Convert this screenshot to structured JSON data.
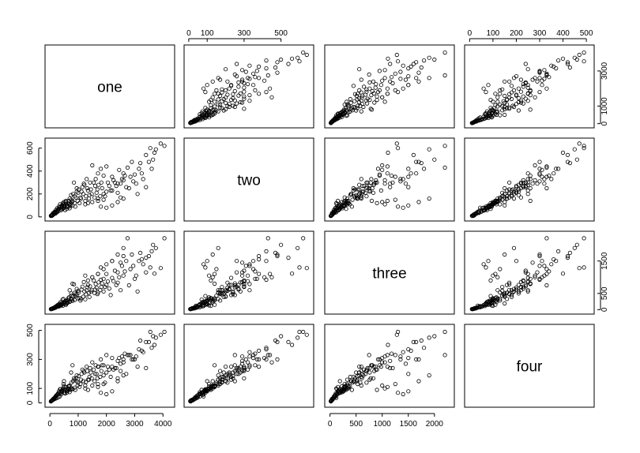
{
  "chart_data": {
    "type": "scatter",
    "variables": [
      {
        "name": "one",
        "ticks": [
          0,
          1000,
          2000,
          3000,
          4000
        ],
        "lim": [
          -60,
          4300
        ]
      },
      {
        "name": "two",
        "ticks": [
          0,
          100,
          300,
          500
        ],
        "tick_labels_all": [
          0,
          100,
          200,
          300,
          400,
          500,
          600
        ],
        "lim": [
          -8,
          660
        ]
      },
      {
        "name": "three",
        "ticks": [
          0,
          500,
          1000,
          1500,
          2000
        ],
        "lim": [
          -40,
          2320
        ]
      },
      {
        "name": "four",
        "ticks": [
          0,
          100,
          200,
          300,
          400,
          500
        ],
        "lim": [
          -8,
          520
        ]
      }
    ],
    "axis_ticks": {
      "top": {
        "two": [
          0,
          100,
          300,
          500
        ],
        "four": [
          0,
          100,
          200,
          300,
          400,
          500
        ]
      },
      "bottom": {
        "one": [
          0,
          1000,
          2000,
          3000,
          4000
        ],
        "three": [
          0,
          500,
          1000,
          1500,
          2000
        ]
      },
      "left": {
        "two": [
          0,
          200,
          400,
          600
        ],
        "four": [
          0,
          100,
          300,
          500
        ]
      },
      "right": {
        "one": [
          0,
          1000,
          3000
        ],
        "three": [
          0,
          500,
          1500
        ]
      }
    },
    "points": [
      [
        3920,
        640,
        1280,
        470
      ],
      [
        3700,
        560,
        1110,
        400
      ],
      [
        3550,
        600,
        1300,
        490
      ],
      [
        3400,
        540,
        1600,
        420
      ],
      [
        3200,
        470,
        1750,
        430
      ],
      [
        2900,
        480,
        1700,
        300
      ],
      [
        2750,
        430,
        2200,
        330
      ],
      [
        2600,
        380,
        1650,
        300
      ],
      [
        2500,
        290,
        1450,
        270
      ],
      [
        2300,
        300,
        1200,
        240
      ],
      [
        3400,
        260,
        1150,
        240
      ],
      [
        3000,
        370,
        950,
        300
      ],
      [
        2000,
        440,
        1100,
        330
      ],
      [
        1800,
        420,
        920,
        300
      ],
      [
        3600,
        420,
        1800,
        380
      ],
      [
        2200,
        350,
        1500,
        310
      ],
      [
        1700,
        380,
        1100,
        250
      ],
      [
        1500,
        450,
        1000,
        280
      ],
      [
        1300,
        330,
        600,
        250
      ],
      [
        2800,
        250,
        750,
        330
      ],
      [
        1950,
        180,
        700,
        140
      ],
      [
        2500,
        170,
        600,
        220
      ],
      [
        1600,
        270,
        620,
        200
      ],
      [
        2150,
        230,
        450,
        180
      ],
      [
        1200,
        290,
        850,
        220
      ],
      [
        850,
        300,
        780,
        170
      ],
      [
        950,
        250,
        450,
        150
      ],
      [
        1400,
        190,
        390,
        180
      ],
      [
        1700,
        160,
        530,
        130
      ],
      [
        3100,
        200,
        560,
        250
      ],
      [
        2700,
        260,
        1500,
        200
      ],
      [
        2400,
        210,
        830,
        170
      ],
      [
        1000,
        210,
        580,
        140
      ],
      [
        1100,
        160,
        330,
        160
      ],
      [
        750,
        190,
        500,
        210
      ],
      [
        800,
        140,
        800,
        260
      ],
      [
        650,
        120,
        350,
        100
      ],
      [
        600,
        90,
        260,
        80
      ],
      [
        500,
        100,
        190,
        150
      ],
      [
        450,
        70,
        310,
        90
      ],
      [
        400,
        60,
        140,
        60
      ],
      [
        350,
        80,
        110,
        45
      ],
      [
        300,
        50,
        90,
        40
      ],
      [
        250,
        40,
        120,
        35
      ],
      [
        200,
        30,
        60,
        30
      ],
      [
        150,
        25,
        45,
        25
      ],
      [
        100,
        15,
        30,
        20
      ],
      [
        80,
        12,
        25,
        18
      ],
      [
        60,
        10,
        20,
        15
      ],
      [
        40,
        8,
        15,
        12
      ],
      [
        900,
        90,
        420,
        90
      ],
      [
        1050,
        120,
        360,
        110
      ],
      [
        700,
        160,
        600,
        120
      ],
      [
        560,
        130,
        270,
        110
      ],
      [
        480,
        110,
        330,
        130
      ],
      [
        380,
        90,
        230,
        95
      ],
      [
        330,
        70,
        180,
        70
      ],
      [
        270,
        55,
        140,
        60
      ],
      [
        220,
        45,
        100,
        50
      ],
      [
        180,
        40,
        80,
        40
      ],
      [
        1250,
        140,
        320,
        120
      ],
      [
        1350,
        230,
        760,
        160
      ],
      [
        1150,
        260,
        710,
        230
      ],
      [
        950,
        220,
        640,
        190
      ],
      [
        880,
        180,
        520,
        160
      ],
      [
        760,
        150,
        430,
        140
      ],
      [
        680,
        110,
        380,
        115
      ],
      [
        620,
        100,
        290,
        95
      ],
      [
        520,
        95,
        250,
        85
      ],
      [
        430,
        85,
        210,
        80
      ],
      [
        2050,
        300,
        870,
        250
      ],
      [
        1850,
        250,
        810,
        260
      ],
      [
        1650,
        210,
        680,
        200
      ],
      [
        1450,
        240,
        560,
        210
      ],
      [
        1550,
        300,
        900,
        230
      ],
      [
        2600,
        320,
        1050,
        280
      ],
      [
        2350,
        270,
        760,
        240
      ],
      [
        2250,
        320,
        880,
        230
      ],
      [
        1900,
        360,
        950,
        260
      ],
      [
        2450,
        410,
        1000,
        310
      ],
      [
        3300,
        330,
        1400,
        350
      ],
      [
        3150,
        420,
        1500,
        370
      ],
      [
        3500,
        480,
        1650,
        420
      ],
      [
        3750,
        590,
        1900,
        450
      ],
      [
        2850,
        350,
        1250,
        330
      ],
      [
        570,
        140,
        150,
        110
      ],
      [
        510,
        80,
        200,
        70
      ],
      [
        460,
        120,
        120,
        100
      ],
      [
        420,
        100,
        160,
        85
      ],
      [
        390,
        60,
        170,
        75
      ],
      [
        360,
        110,
        130,
        95
      ],
      [
        320,
        90,
        150,
        80
      ],
      [
        290,
        65,
        110,
        65
      ],
      [
        260,
        75,
        100,
        55
      ],
      [
        230,
        50,
        90,
        50
      ],
      [
        210,
        60,
        75,
        45
      ],
      [
        190,
        35,
        85,
        40
      ],
      [
        170,
        45,
        65,
        35
      ],
      [
        140,
        30,
        55,
        30
      ],
      [
        120,
        35,
        40,
        28
      ],
      [
        110,
        20,
        50,
        22
      ],
      [
        90,
        25,
        35,
        20
      ],
      [
        70,
        18,
        30,
        17
      ],
      [
        55,
        14,
        22,
        14
      ],
      [
        35,
        10,
        18,
        10
      ],
      [
        1080,
        170,
        280,
        130
      ],
      [
        1180,
        200,
        400,
        150
      ],
      [
        1280,
        180,
        470,
        145
      ],
      [
        1380,
        160,
        520,
        160
      ],
      [
        1480,
        200,
        610,
        170
      ],
      [
        980,
        140,
        350,
        120
      ],
      [
        880,
        120,
        300,
        105
      ],
      [
        780,
        130,
        310,
        100
      ],
      [
        720,
        95,
        260,
        90
      ],
      [
        660,
        140,
        280,
        115
      ],
      [
        820,
        200,
        410,
        150
      ],
      [
        920,
        170,
        480,
        170
      ],
      [
        1020,
        240,
        530,
        185
      ],
      [
        1120,
        220,
        620,
        200
      ],
      [
        1220,
        280,
        560,
        210
      ],
      [
        1320,
        250,
        690,
        220
      ],
      [
        1420,
        300,
        720,
        240
      ],
      [
        1620,
        330,
        790,
        260
      ],
      [
        1720,
        280,
        840,
        250
      ],
      [
        1820,
        300,
        700,
        220
      ],
      [
        2100,
        270,
        650,
        230
      ],
      [
        2200,
        230,
        980,
        250
      ],
      [
        2400,
        290,
        1150,
        290
      ],
      [
        2550,
        330,
        1350,
        320
      ],
      [
        2650,
        360,
        1180,
        340
      ],
      [
        600,
        70,
        190,
        70
      ],
      [
        640,
        85,
        220,
        85
      ],
      [
        700,
        75,
        240,
        75
      ],
      [
        740,
        110,
        330,
        100
      ],
      [
        800,
        100,
        270,
        95
      ],
      [
        540,
        60,
        160,
        65
      ],
      [
        580,
        110,
        200,
        95
      ],
      [
        500,
        130,
        230,
        115
      ],
      [
        440,
        95,
        180,
        90
      ],
      [
        410,
        75,
        140,
        70
      ],
      [
        1900,
        200,
        560,
        190
      ],
      [
        2000,
        220,
        760,
        210
      ],
      [
        1780,
        180,
        600,
        180
      ],
      [
        1680,
        240,
        480,
        170
      ],
      [
        1580,
        170,
        510,
        150
      ],
      [
        3050,
        290,
        1050,
        320
      ],
      [
        2950,
        310,
        1350,
        300
      ],
      [
        3250,
        380,
        1550,
        360
      ],
      [
        3650,
        500,
        2000,
        460
      ],
      [
        4050,
        620,
        2200,
        490
      ],
      [
        1350,
        120,
        900,
        90
      ],
      [
        1500,
        130,
        1000,
        120
      ],
      [
        1700,
        140,
        1100,
        110
      ],
      [
        1250,
        110,
        1050,
        100
      ],
      [
        1900,
        150,
        1250,
        130
      ],
      [
        2000,
        80,
        1400,
        60
      ],
      [
        2200,
        100,
        1500,
        80
      ],
      [
        1800,
        90,
        1300,
        70
      ],
      [
        2400,
        130,
        1700,
        150
      ],
      [
        2600,
        160,
        1900,
        190
      ]
    ]
  }
}
